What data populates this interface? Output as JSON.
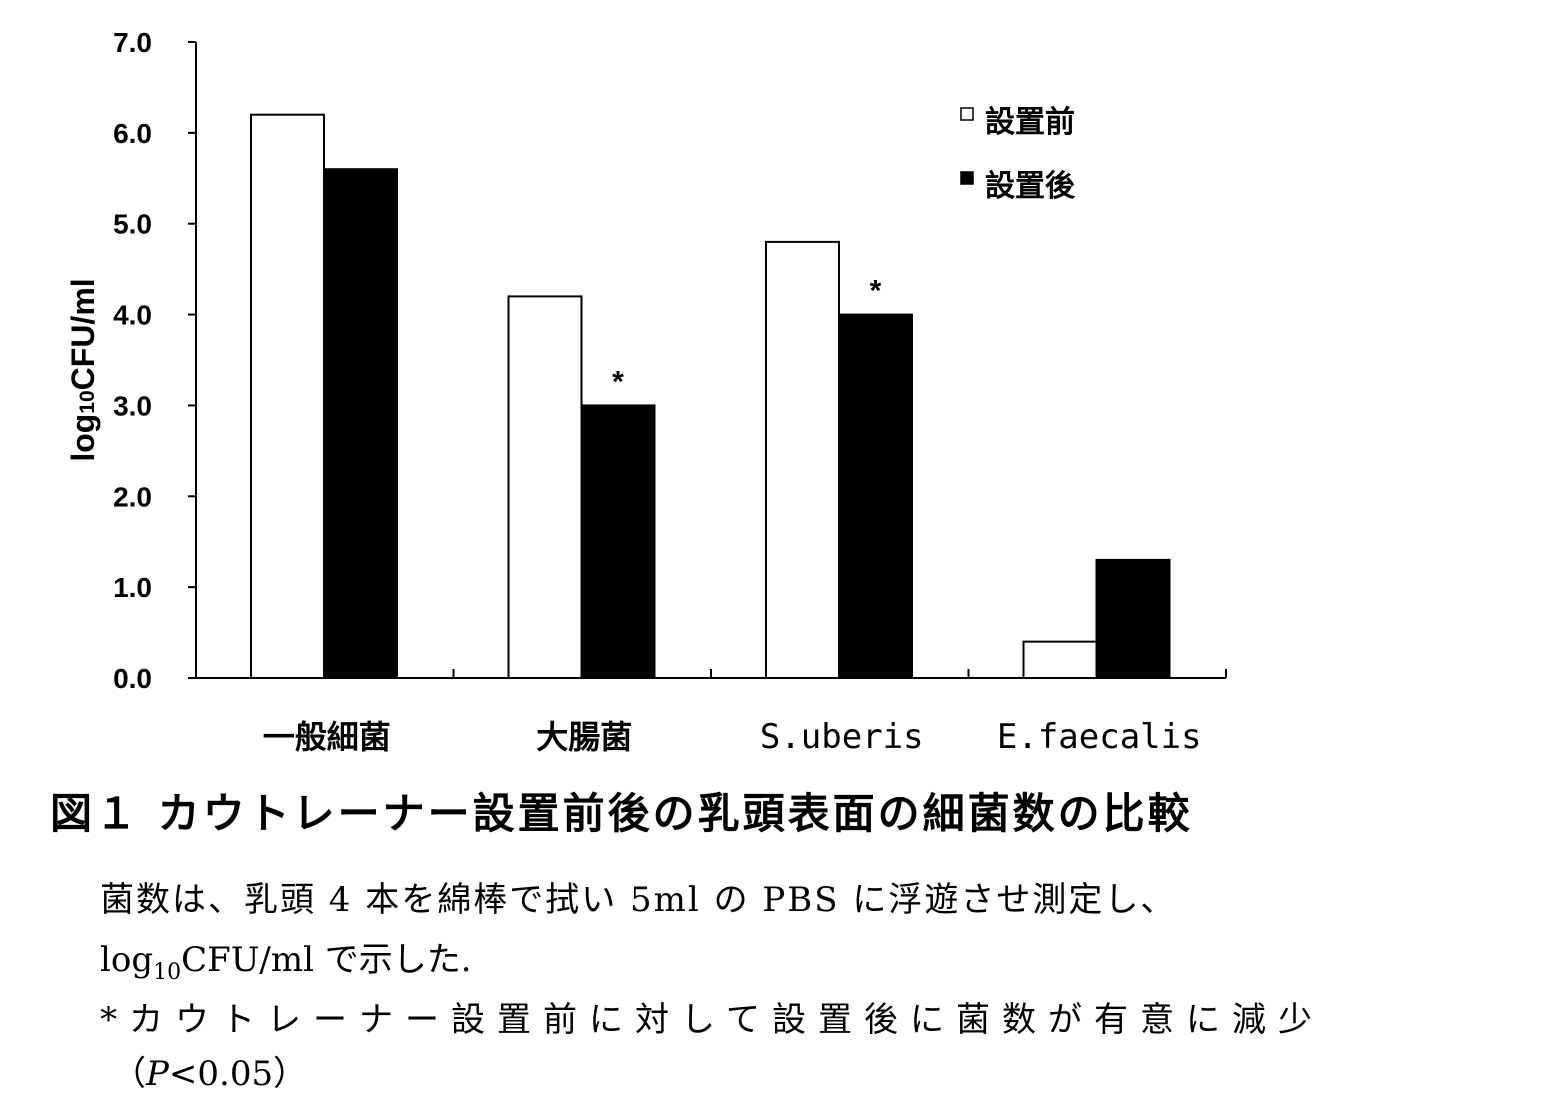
{
  "chart_data": {
    "type": "bar",
    "categories": [
      "一般細菌",
      "大腸菌",
      "S.uberis",
      "E.faecalis"
    ],
    "series": [
      {
        "name": "設置前",
        "values": [
          6.2,
          4.2,
          4.8,
          0.4
        ],
        "color": "#ffffff"
      },
      {
        "name": "設置後",
        "values": [
          5.6,
          3.0,
          4.0,
          1.3
        ],
        "color": "#000000"
      }
    ],
    "significance": [
      "",
      "*",
      "*",
      ""
    ],
    "yticks": [
      "0.0",
      "1.0",
      "2.0",
      "3.0",
      "4.0",
      "5.0",
      "6.0",
      "7.0"
    ],
    "ylim": [
      0,
      7
    ],
    "ylabel": {
      "prefix": "log",
      "sub": "10",
      "suffix": "CFU/ml"
    },
    "legend_position": "top-right"
  },
  "caption": {
    "title": "図１ カウトレーナー設置前後の乳頭表面の細菌数の比較",
    "note1": "菌数は、乳頭 4 本を綿棒で拭い 5ml の PBS に浮遊させ測定し、",
    "note2_prefix": "log",
    "note2_sub": "10",
    "note2_suffix": "CFU/ml で示した.",
    "note3": "*カウトレーナー設置前に対して設置後に菌数が有意に減少",
    "note4_open": "（",
    "note4_p": "P",
    "note4_rest": "<0.05）"
  }
}
